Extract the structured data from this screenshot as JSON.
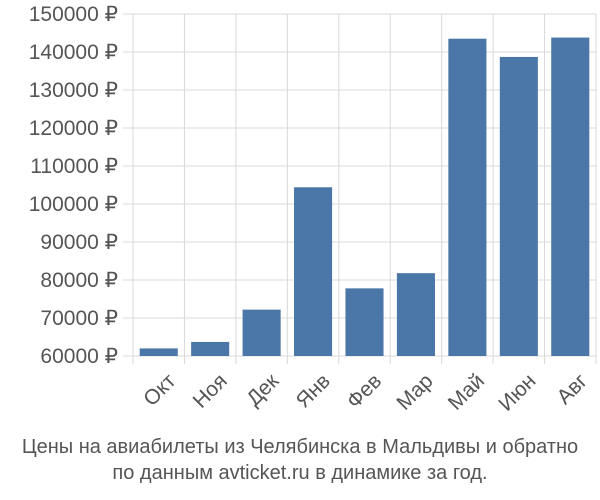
{
  "chart_data": {
    "type": "bar",
    "categories": [
      "Окт",
      "Ноя",
      "Дек",
      "Янв",
      "Фев",
      "Мар",
      "Май",
      "Июн",
      "Авг"
    ],
    "values": [
      62000,
      63700,
      72200,
      104400,
      77800,
      81800,
      143500,
      138700,
      143800
    ],
    "ylim": [
      60000,
      150000
    ],
    "yticks": [
      60000,
      70000,
      80000,
      90000,
      100000,
      110000,
      120000,
      130000,
      140000,
      150000
    ],
    "ytick_labels": [
      "60000 ₽",
      "70000 ₽",
      "80000 ₽",
      "90000 ₽",
      "100000 ₽",
      "110000 ₽",
      "120000 ₽",
      "130000 ₽",
      "140000 ₽",
      "150000 ₽"
    ],
    "grid": true,
    "bar_color": "#4a76a8",
    "caption_line1": "Цены на авиабилеты из Челябинска в Мальдивы и обратно",
    "caption_line2": "по данным avticket.ru в динамике за год."
  }
}
